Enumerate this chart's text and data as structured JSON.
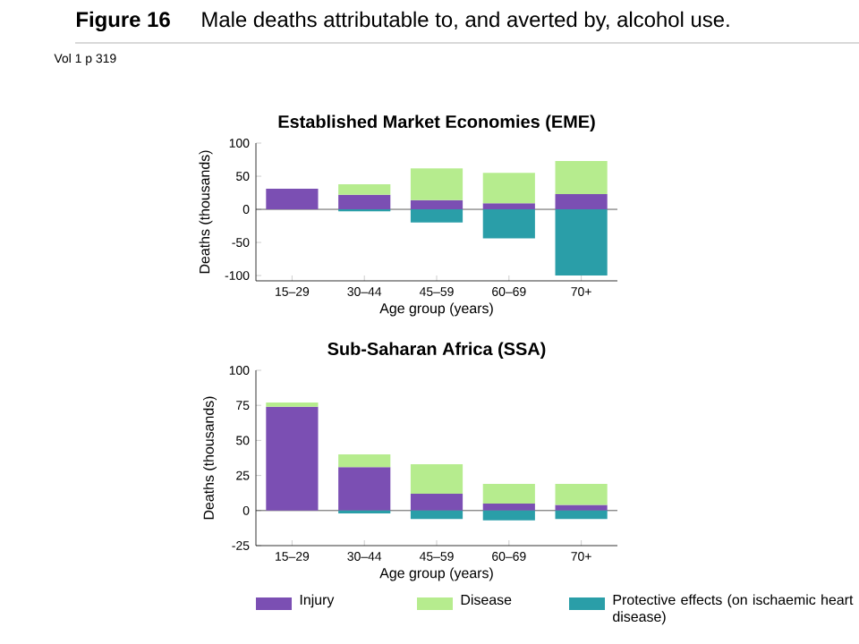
{
  "chart_data": [
    {
      "type": "bar",
      "stacked": true,
      "title": "Established Market Economies (EME)",
      "xlabel": "Age group (years)",
      "ylabel": "Deaths (thousands)",
      "annotations": [
        "**Figure 16**",
        "Male deaths attributable to, and averted by, alcohol use.",
        "Vol 1 p 319"
      ],
      "categories": [
        "15–29",
        "30–44",
        "45–59",
        "60–69",
        "70+"
      ],
      "ylim": [
        -108,
        100
      ],
      "yticks": [
        -100,
        -50,
        0,
        50,
        100
      ],
      "series": [
        {
          "color": "#7b4fb3",
          "values": [
            31,
            22,
            14,
            9,
            23
          ]
        },
        {
          "color": "#b6ec8e",
          "values": [
            0,
            16,
            48,
            46,
            50
          ]
        },
        {
          "color": "#2a9ea8",
          "values": [
            0,
            -3,
            -20,
            -44,
            -100
          ]
        }
      ]
    },
    {
      "type": "bar",
      "stacked": true,
      "title": "Sub-Saharan Africa (SSA)",
      "xlabel": "Age group (years)",
      "ylabel": "Deaths (thousands)",
      "categories": [
        "15–29",
        "30–44",
        "45–59",
        "60–69",
        "70+"
      ],
      "ylim": [
        -25,
        100
      ],
      "yticks": [
        -25,
        0,
        25,
        50,
        75,
        100
      ],
      "legend": "bottom",
      "series": [
        {
          "name": "Injury",
          "color": "#7b4fb3",
          "values": [
            74,
            31,
            12,
            5,
            4
          ]
        },
        {
          "name": "Disease",
          "color": "#b6ec8e",
          "values": [
            3,
            9,
            21,
            14,
            15
          ]
        },
        {
          "name": "Protective effects (on ischaemic heart disease)",
          "color": "#2a9ea8",
          "values": [
            0,
            -2,
            -6,
            -7,
            -6
          ]
        }
      ]
    }
  ]
}
